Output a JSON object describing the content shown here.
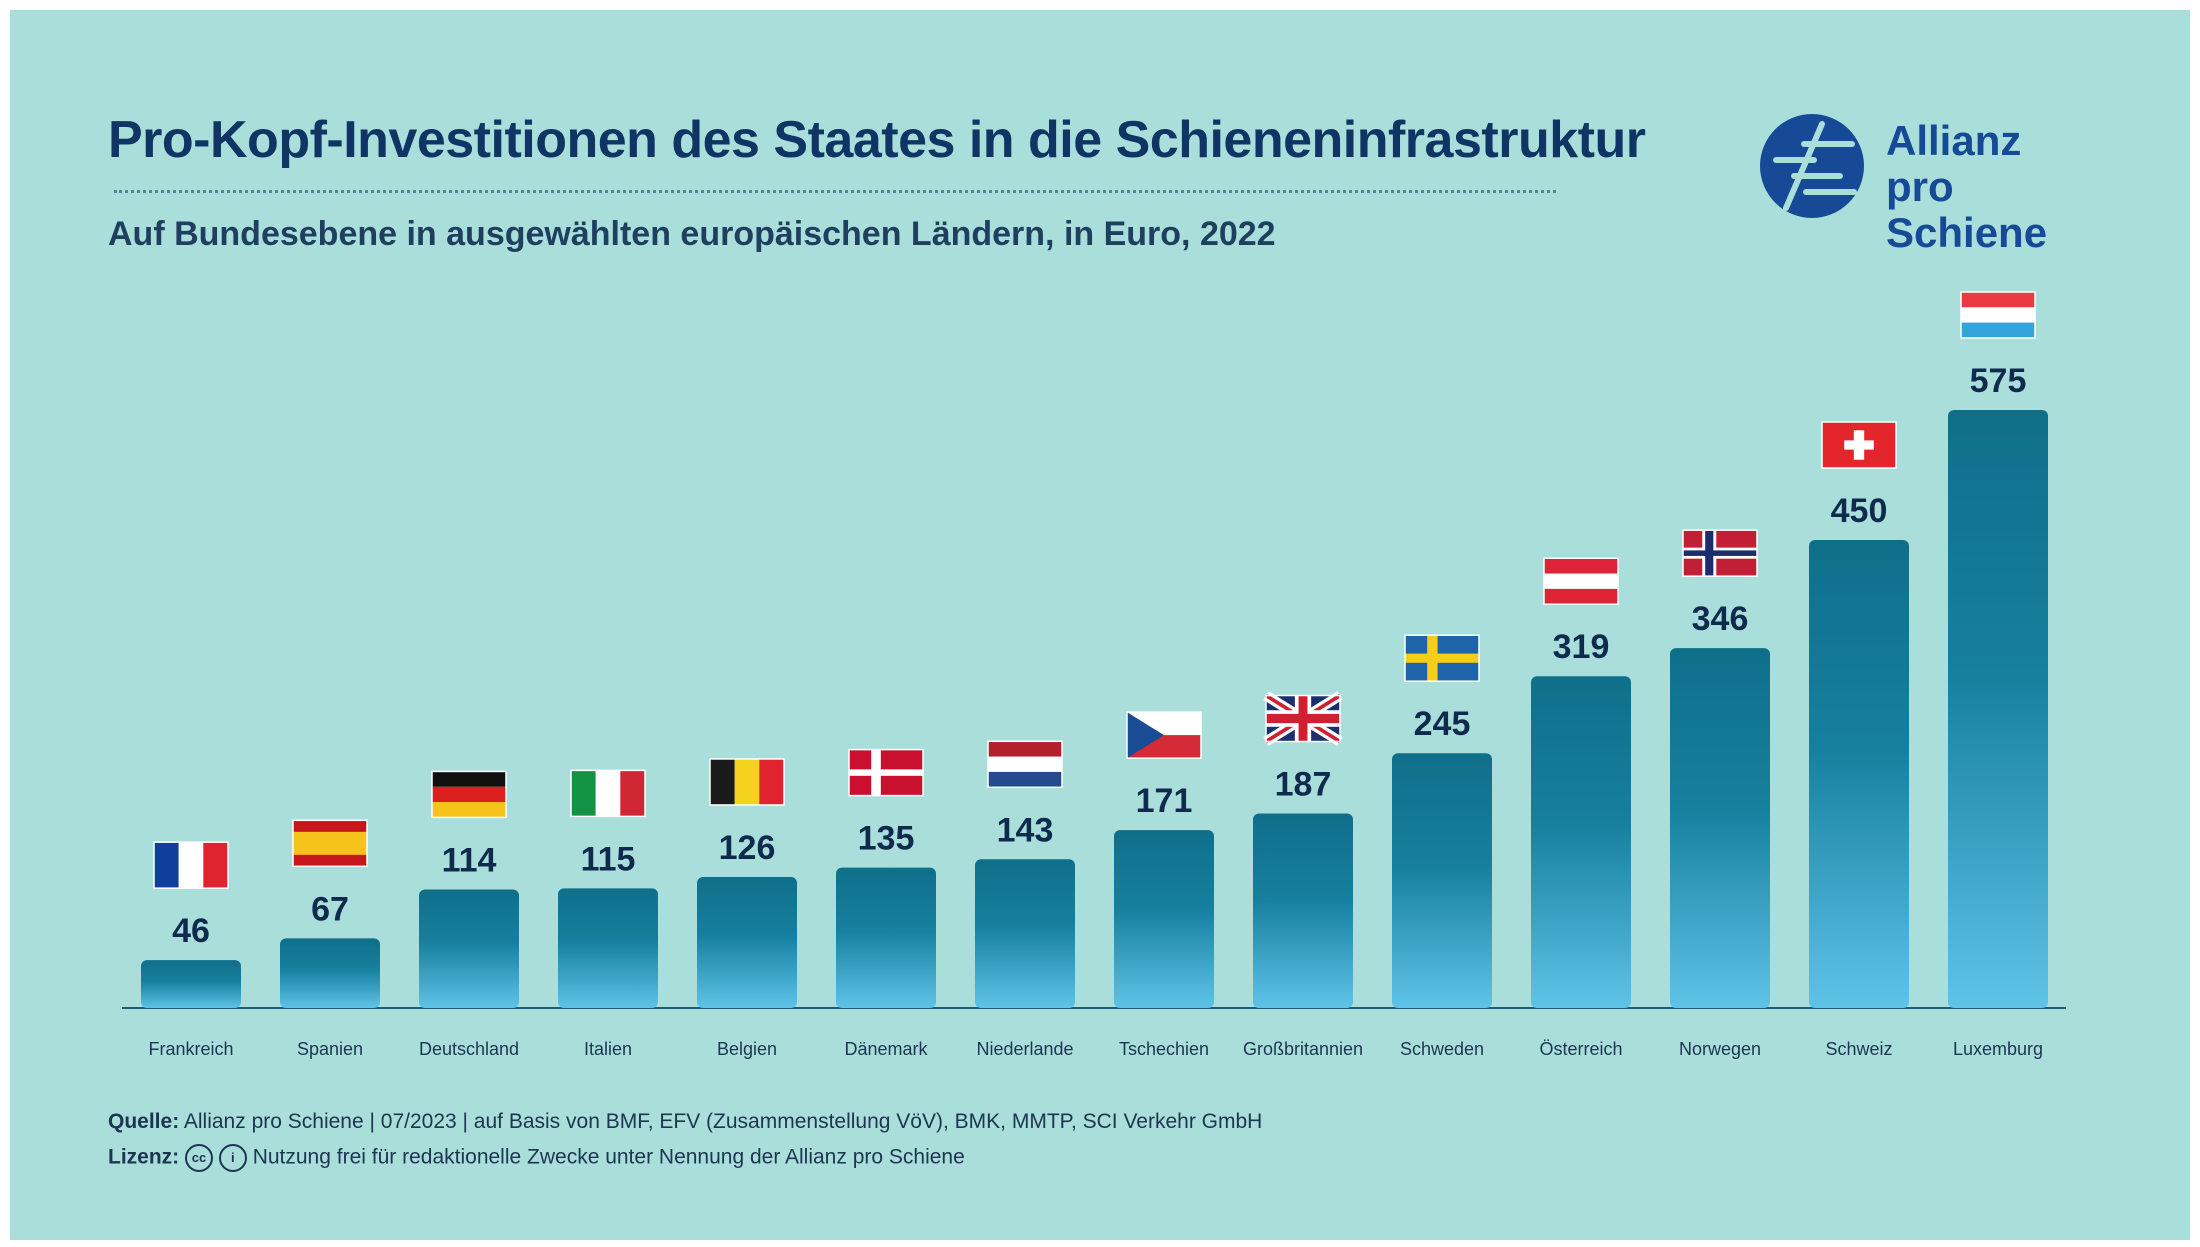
{
  "header": {
    "title": "Pro-Kopf-Investitionen des Staates in die Schieneninfrastruktur",
    "subtitle": "Auf Bundesebene in ausgewählten europäischen Ländern, in Euro, 2022"
  },
  "logo": {
    "line1": "Allianz",
    "line2": "pro Schiene"
  },
  "footer": {
    "source_label": "Quelle:",
    "source_text": "Allianz pro Schiene | 07/2023 | auf Basis von BMF, EFV (Zusammenstellung VöV), BMK, MMTP, SCI Verkehr GmbH",
    "license_label": "Lizenz:",
    "license_icon_cc": "cc",
    "license_icon_by": "i",
    "license_text": "Nutzung frei für redaktionelle Zwecke unter Nennung der Allianz pro Schiene"
  },
  "colors": {
    "background": "#a9dedb",
    "bar_top": "#0f6f8a",
    "bar_bottom": "#5fc3e8",
    "title": "#0e3563",
    "logo": "#174a96"
  },
  "chart_data": {
    "type": "bar",
    "title": "Pro-Kopf-Investitionen des Staates in die Schieneninfrastruktur",
    "subtitle": "Auf Bundesebene in ausgewählten europäischen Ländern, in Euro, 2022",
    "xlabel": "",
    "ylabel": "",
    "ylim": [
      0,
      575
    ],
    "grid": false,
    "legend": "none",
    "categories": [
      "Frankreich",
      "Spanien",
      "Deutschland",
      "Italien",
      "Belgien",
      "Dänemark",
      "Niederlande",
      "Tschechien",
      "Großbritannien",
      "Schweden",
      "Österreich",
      "Norwegen",
      "Schweiz",
      "Luxemburg"
    ],
    "values": [
      46,
      67,
      114,
      115,
      126,
      135,
      143,
      171,
      187,
      245,
      319,
      346,
      450,
      575
    ],
    "flags": [
      "fr",
      "es",
      "de",
      "it",
      "be",
      "dk",
      "nl",
      "cz",
      "gb",
      "se",
      "at",
      "no",
      "ch",
      "lu"
    ]
  }
}
